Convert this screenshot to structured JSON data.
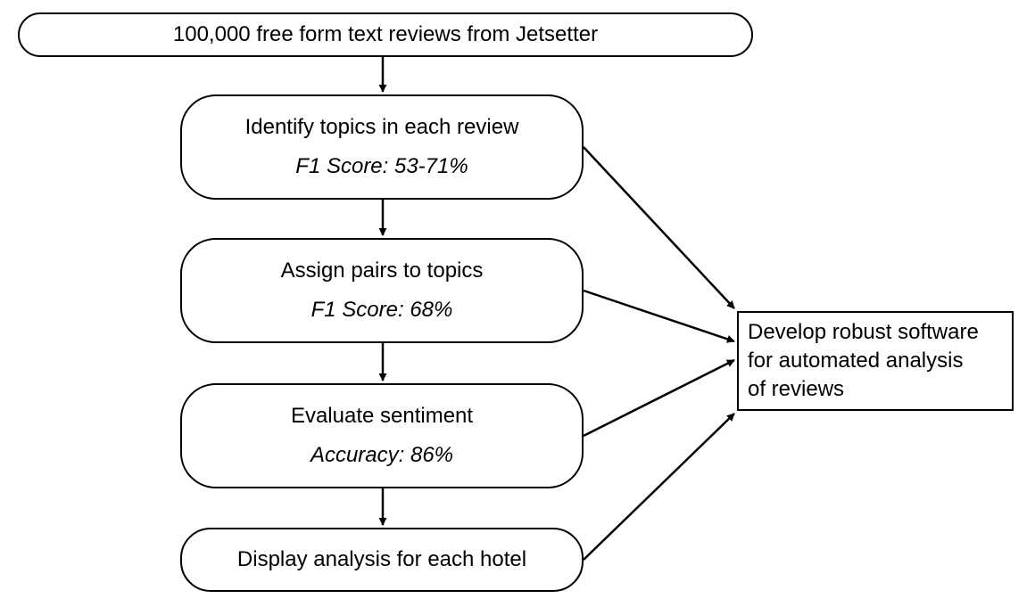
{
  "diagram": {
    "source": {
      "label": "100,000 free form text reviews from Jetsetter"
    },
    "steps": [
      {
        "title": "Identify topics in each review",
        "metric": "F1 Score: 53-71%"
      },
      {
        "title": "Assign pairs to topics",
        "metric": "F1 Score: 68%"
      },
      {
        "title": "Evaluate sentiment",
        "metric": "Accuracy: 86%"
      },
      {
        "title": "Display analysis for each hotel"
      }
    ],
    "goal": {
      "lines": [
        "Develop robust software",
        "for automated analysis",
        "of reviews"
      ]
    }
  }
}
